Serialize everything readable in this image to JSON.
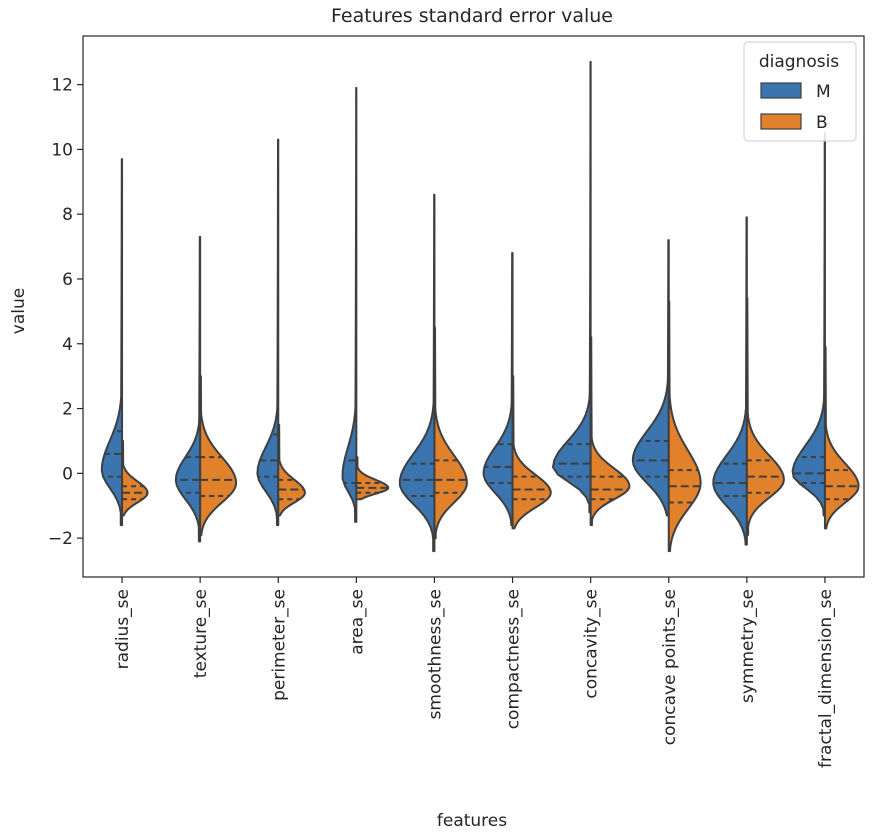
{
  "chart_data": {
    "type": "violin",
    "title": "Features standard error value",
    "xlabel": "features",
    "ylabel": "value",
    "ylim": [
      -3.2,
      13.5
    ],
    "yticks": [
      -2,
      0,
      2,
      4,
      6,
      8,
      10,
      12
    ],
    "ytick_labels": [
      "−2",
      "0",
      "2",
      "4",
      "6",
      "8",
      "10",
      "12"
    ],
    "categories": [
      "radius_se",
      "texture_se",
      "perimeter_se",
      "area_se",
      "smoothness_se",
      "compactness_se",
      "concavity_se",
      "concave points_se",
      "symmetry_se",
      "fractal_dimension_se"
    ],
    "legend": {
      "title": "diagnosis",
      "position": "top-right",
      "entries": [
        {
          "label": "M",
          "color": "#3a75b0"
        },
        {
          "label": "B",
          "color": "#e1812c"
        }
      ]
    },
    "series": [
      {
        "name": "M",
        "color": "#3a75b0",
        "side": "left",
        "distributions": [
          {
            "feature": "radius_se",
            "min": -1.6,
            "max": 9.7,
            "mode": 0.1,
            "sd_low": 0.55,
            "sd_high": 0.9,
            "density": 0.35,
            "q1": -0.1,
            "median": 0.6,
            "q3": 1.3
          },
          {
            "feature": "texture_se",
            "min": -2.1,
            "max": 7.3,
            "mode": -0.2,
            "sd_low": 0.6,
            "sd_high": 0.7,
            "density": 0.42,
            "q1": -0.6,
            "median": -0.2,
            "q3": 0.5
          },
          {
            "feature": "perimeter_se",
            "min": -1.6,
            "max": 10.3,
            "mode": 0.0,
            "sd_low": 0.55,
            "sd_high": 0.8,
            "density": 0.36,
            "q1": -0.1,
            "median": 0.4,
            "q3": 1.2
          },
          {
            "feature": "area_se",
            "min": -1.5,
            "max": 11.9,
            "mode": -0.1,
            "sd_low": 0.45,
            "sd_high": 0.9,
            "density": 0.24,
            "q1": -0.3,
            "median": 0.4,
            "q3": 1.6
          },
          {
            "feature": "smoothness_se",
            "min": -2.4,
            "max": 8.6,
            "mode": -0.3,
            "sd_low": 0.65,
            "sd_high": 0.9,
            "density": 0.6,
            "q1": -0.7,
            "median": -0.2,
            "q3": 0.3
          },
          {
            "feature": "compactness_se",
            "min": -1.6,
            "max": 6.8,
            "mode": 0.0,
            "sd_low": 0.6,
            "sd_high": 0.8,
            "density": 0.5,
            "q1": -0.3,
            "median": 0.2,
            "q3": 0.9
          },
          {
            "feature": "concavity_se",
            "min": -1.2,
            "max": 12.7,
            "mode": 0.2,
            "sd_low": 0.45,
            "sd_high": 0.8,
            "density": 0.65,
            "q1": -0.1,
            "median": 0.3,
            "q3": 0.9
          },
          {
            "feature": "concave points_se",
            "min": -1.3,
            "max": 7.2,
            "mode": 0.4,
            "sd_low": 0.7,
            "sd_high": 0.9,
            "density": 0.62,
            "q1": -0.1,
            "median": 0.4,
            "q3": 1.0
          },
          {
            "feature": "symmetry_se",
            "min": -2.2,
            "max": 7.9,
            "mode": -0.3,
            "sd_low": 0.7,
            "sd_high": 0.85,
            "density": 0.58,
            "q1": -0.7,
            "median": -0.3,
            "q3": 0.3
          },
          {
            "feature": "fractal_dimension_se",
            "min": -1.3,
            "max": 10.5,
            "mode": 0.0,
            "sd_low": 0.45,
            "sd_high": 0.85,
            "density": 0.56,
            "q1": -0.3,
            "median": 0.0,
            "q3": 0.5
          }
        ]
      },
      {
        "name": "B",
        "color": "#e1812c",
        "side": "right",
        "distributions": [
          {
            "feature": "radius_se",
            "min": -1.3,
            "max": 1.0,
            "mode": -0.6,
            "sd_low": 0.3,
            "sd_high": 0.35,
            "density": 0.44,
            "q1": -0.8,
            "median": -0.6,
            "q3": -0.4
          },
          {
            "feature": "texture_se",
            "min": -1.9,
            "max": 3.0,
            "mode": -0.3,
            "sd_low": 0.6,
            "sd_high": 0.8,
            "density": 0.62,
            "q1": -0.7,
            "median": -0.2,
            "q3": 0.5
          },
          {
            "feature": "perimeter_se",
            "min": -1.3,
            "max": 1.5,
            "mode": -0.6,
            "sd_low": 0.3,
            "sd_high": 0.4,
            "density": 0.46,
            "q1": -0.8,
            "median": -0.5,
            "q3": -0.2
          },
          {
            "feature": "area_se",
            "min": -0.8,
            "max": 0.5,
            "mode": -0.45,
            "sd_low": 0.18,
            "sd_high": 0.25,
            "density": 0.55,
            "q1": -0.6,
            "median": -0.45,
            "q3": -0.3
          },
          {
            "feature": "smoothness_se",
            "min": -2.0,
            "max": 4.5,
            "mode": -0.3,
            "sd_low": 0.6,
            "sd_high": 0.85,
            "density": 0.56,
            "q1": -0.6,
            "median": -0.2,
            "q3": 0.4
          },
          {
            "feature": "compactness_se",
            "min": -1.7,
            "max": 3.0,
            "mode": -0.6,
            "sd_low": 0.45,
            "sd_high": 0.55,
            "density": 0.66,
            "q1": -0.8,
            "median": -0.5,
            "q3": -0.1
          },
          {
            "feature": "concavity_se",
            "min": -1.6,
            "max": 4.2,
            "mode": -0.4,
            "sd_low": 0.4,
            "sd_high": 0.55,
            "density": 0.67,
            "q1": -0.8,
            "median": -0.5,
            "q3": -0.1
          },
          {
            "feature": "concave points_se",
            "min": -2.4,
            "max": 5.3,
            "mode": -0.3,
            "sd_low": 0.8,
            "sd_high": 1.0,
            "density": 0.55,
            "q1": -0.9,
            "median": -0.4,
            "q3": 0.1
          },
          {
            "feature": "symmetry_se",
            "min": -1.9,
            "max": 5.4,
            "mode": -0.2,
            "sd_low": 0.55,
            "sd_high": 0.75,
            "density": 0.64,
            "q1": -0.6,
            "median": -0.1,
            "q3": 0.4
          },
          {
            "feature": "fractal_dimension_se",
            "min": -1.7,
            "max": 3.9,
            "mode": -0.4,
            "sd_low": 0.5,
            "sd_high": 0.7,
            "density": 0.58,
            "q1": -0.8,
            "median": -0.4,
            "q3": 0.1
          }
        ]
      }
    ]
  }
}
